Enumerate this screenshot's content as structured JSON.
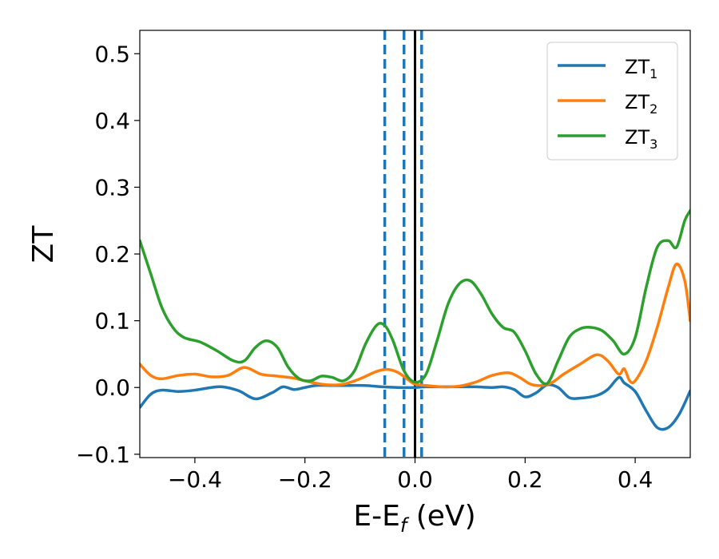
{
  "chart_data": {
    "type": "line",
    "xlabel": "E-E",
    "xlabel_sub": "f",
    "xlabel_unit": " (eV)",
    "ylabel": "ZT",
    "xlim": [
      -0.5,
      0.5
    ],
    "ylim": [
      -0.105,
      0.535
    ],
    "xticks": [
      -0.4,
      -0.2,
      0.0,
      0.2,
      0.4
    ],
    "xtick_labels": [
      "−0.4",
      "−0.2",
      "0.0",
      "0.2",
      "0.4"
    ],
    "yticks": [
      -0.1,
      0.0,
      0.1,
      0.2,
      0.3,
      0.4,
      0.5
    ],
    "ytick_labels": [
      "−0.1",
      "0.0",
      "0.1",
      "0.2",
      "0.3",
      "0.4",
      "0.5"
    ],
    "grid": false,
    "legend_position": "top-right",
    "vlines": [
      {
        "x": -0.055,
        "style": "dashed",
        "color": "#1f77b4"
      },
      {
        "x": -0.02,
        "style": "dashed",
        "color": "#1f77b4"
      },
      {
        "x": 0.012,
        "style": "dashed",
        "color": "#1f77b4"
      },
      {
        "x": 0.0,
        "style": "solid",
        "color": "#000000"
      }
    ],
    "series": [
      {
        "name": "ZT",
        "sub": "1",
        "color": "#1f77b4",
        "points": [
          [
            -0.5,
            -0.03
          ],
          [
            -0.48,
            -0.01
          ],
          [
            -0.46,
            -0.004
          ],
          [
            -0.43,
            -0.006
          ],
          [
            -0.4,
            -0.004
          ],
          [
            -0.37,
            0.0
          ],
          [
            -0.35,
            0.001
          ],
          [
            -0.32,
            -0.005
          ],
          [
            -0.29,
            -0.017
          ],
          [
            -0.26,
            -0.008
          ],
          [
            -0.24,
            0.001
          ],
          [
            -0.22,
            -0.003
          ],
          [
            -0.2,
            0.0
          ],
          [
            -0.18,
            0.003
          ],
          [
            -0.15,
            0.003
          ],
          [
            -0.12,
            0.003
          ],
          [
            -0.09,
            0.003
          ],
          [
            -0.06,
            0.001
          ],
          [
            -0.03,
            0.0
          ],
          [
            0.0,
            0.0
          ],
          [
            0.02,
            0.001
          ],
          [
            0.05,
            0.001
          ],
          [
            0.08,
            0.001
          ],
          [
            0.11,
            0.001
          ],
          [
            0.14,
            0.0
          ],
          [
            0.16,
            0.001
          ],
          [
            0.18,
            -0.003
          ],
          [
            0.2,
            -0.014
          ],
          [
            0.22,
            -0.008
          ],
          [
            0.24,
            0.004
          ],
          [
            0.26,
            0.0
          ],
          [
            0.28,
            -0.015
          ],
          [
            0.3,
            -0.016
          ],
          [
            0.33,
            -0.012
          ],
          [
            0.35,
            -0.003
          ],
          [
            0.37,
            0.015
          ],
          [
            0.38,
            0.007
          ],
          [
            0.4,
            -0.006
          ],
          [
            0.42,
            -0.035
          ],
          [
            0.44,
            -0.06
          ],
          [
            0.46,
            -0.06
          ],
          [
            0.48,
            -0.04
          ],
          [
            0.5,
            -0.005
          ]
        ]
      },
      {
        "name": "ZT",
        "sub": "2",
        "color": "#ff7f0e",
        "points": [
          [
            -0.5,
            0.035
          ],
          [
            -0.48,
            0.018
          ],
          [
            -0.46,
            0.013
          ],
          [
            -0.43,
            0.018
          ],
          [
            -0.4,
            0.02
          ],
          [
            -0.37,
            0.016
          ],
          [
            -0.34,
            0.018
          ],
          [
            -0.31,
            0.03
          ],
          [
            -0.28,
            0.02
          ],
          [
            -0.25,
            0.017
          ],
          [
            -0.22,
            0.014
          ],
          [
            -0.19,
            0.008
          ],
          [
            -0.16,
            0.004
          ],
          [
            -0.13,
            0.005
          ],
          [
            -0.1,
            0.013
          ],
          [
            -0.07,
            0.024
          ],
          [
            -0.05,
            0.027
          ],
          [
            -0.03,
            0.022
          ],
          [
            -0.01,
            0.01
          ],
          [
            0.0,
            0.005
          ],
          [
            0.02,
            0.003
          ],
          [
            0.05,
            0.001
          ],
          [
            0.08,
            0.002
          ],
          [
            0.11,
            0.008
          ],
          [
            0.14,
            0.018
          ],
          [
            0.17,
            0.022
          ],
          [
            0.19,
            0.015
          ],
          [
            0.21,
            0.005
          ],
          [
            0.23,
            0.003
          ],
          [
            0.25,
            0.008
          ],
          [
            0.27,
            0.02
          ],
          [
            0.3,
            0.035
          ],
          [
            0.33,
            0.049
          ],
          [
            0.35,
            0.04
          ],
          [
            0.37,
            0.02
          ],
          [
            0.38,
            0.028
          ],
          [
            0.39,
            0.01
          ],
          [
            0.4,
            0.01
          ],
          [
            0.42,
            0.04
          ],
          [
            0.44,
            0.09
          ],
          [
            0.46,
            0.15
          ],
          [
            0.475,
            0.185
          ],
          [
            0.49,
            0.16
          ],
          [
            0.5,
            0.1
          ]
        ]
      },
      {
        "name": "ZT",
        "sub": "3",
        "color": "#2ca02c",
        "points": [
          [
            -0.5,
            0.22
          ],
          [
            -0.48,
            0.17
          ],
          [
            -0.46,
            0.12
          ],
          [
            -0.44,
            0.09
          ],
          [
            -0.42,
            0.075
          ],
          [
            -0.39,
            0.068
          ],
          [
            -0.36,
            0.055
          ],
          [
            -0.33,
            0.04
          ],
          [
            -0.31,
            0.04
          ],
          [
            -0.29,
            0.06
          ],
          [
            -0.27,
            0.07
          ],
          [
            -0.25,
            0.06
          ],
          [
            -0.23,
            0.03
          ],
          [
            -0.21,
            0.013
          ],
          [
            -0.19,
            0.01
          ],
          [
            -0.17,
            0.017
          ],
          [
            -0.15,
            0.015
          ],
          [
            -0.13,
            0.01
          ],
          [
            -0.11,
            0.025
          ],
          [
            -0.09,
            0.065
          ],
          [
            -0.07,
            0.093
          ],
          [
            -0.055,
            0.093
          ],
          [
            -0.04,
            0.07
          ],
          [
            -0.02,
            0.025
          ],
          [
            0.0,
            0.008
          ],
          [
            0.02,
            0.02
          ],
          [
            0.04,
            0.07
          ],
          [
            0.06,
            0.125
          ],
          [
            0.08,
            0.155
          ],
          [
            0.1,
            0.16
          ],
          [
            0.12,
            0.14
          ],
          [
            0.14,
            0.11
          ],
          [
            0.16,
            0.09
          ],
          [
            0.18,
            0.083
          ],
          [
            0.2,
            0.055
          ],
          [
            0.22,
            0.02
          ],
          [
            0.24,
            0.006
          ],
          [
            0.26,
            0.04
          ],
          [
            0.28,
            0.075
          ],
          [
            0.3,
            0.088
          ],
          [
            0.32,
            0.09
          ],
          [
            0.34,
            0.085
          ],
          [
            0.36,
            0.07
          ],
          [
            0.38,
            0.05
          ],
          [
            0.4,
            0.075
          ],
          [
            0.42,
            0.15
          ],
          [
            0.44,
            0.21
          ],
          [
            0.46,
            0.22
          ],
          [
            0.475,
            0.21
          ],
          [
            0.49,
            0.25
          ],
          [
            0.5,
            0.265
          ]
        ]
      }
    ]
  }
}
